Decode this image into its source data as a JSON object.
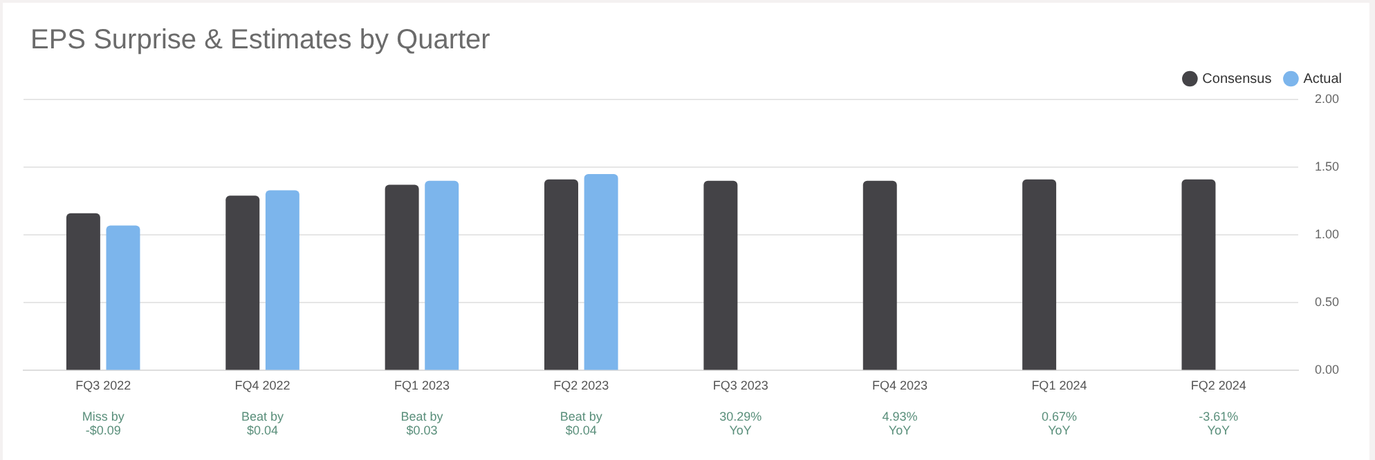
{
  "chart_data": {
    "type": "bar",
    "title": "EPS Surprise & Estimates by Quarter",
    "categories": [
      "FQ3 2022",
      "FQ4 2022",
      "FQ1 2023",
      "FQ2 2023",
      "FQ3 2023",
      "FQ4 2023",
      "FQ1 2024",
      "FQ2 2024"
    ],
    "series": [
      {
        "name": "Consensus",
        "color": "#444347",
        "values": [
          1.16,
          1.29,
          1.37,
          1.41,
          1.4,
          1.4,
          1.41,
          1.41
        ]
      },
      {
        "name": "Actual",
        "color": "#7cb5ec",
        "values": [
          1.07,
          1.33,
          1.4,
          1.45,
          null,
          null,
          null,
          null
        ]
      }
    ],
    "ylim": [
      0,
      2
    ],
    "yticks": [
      {
        "value": 0,
        "label": "0.00"
      },
      {
        "value": 0.5,
        "label": "0.50"
      },
      {
        "value": 1,
        "label": "1.00"
      },
      {
        "value": 1.5,
        "label": "1.50"
      },
      {
        "value": 2,
        "label": "2.00"
      }
    ],
    "grid": "y",
    "legend": "top right",
    "annotations": [
      "Miss by\n-$0.09",
      "Beat by\n$0.04",
      "Beat by\n$0.03",
      "Beat by\n$0.04",
      "30.29%\nYoY",
      "4.93%\nYoY",
      "0.67%\nYoY",
      "-3.61%\nYoY"
    ]
  }
}
